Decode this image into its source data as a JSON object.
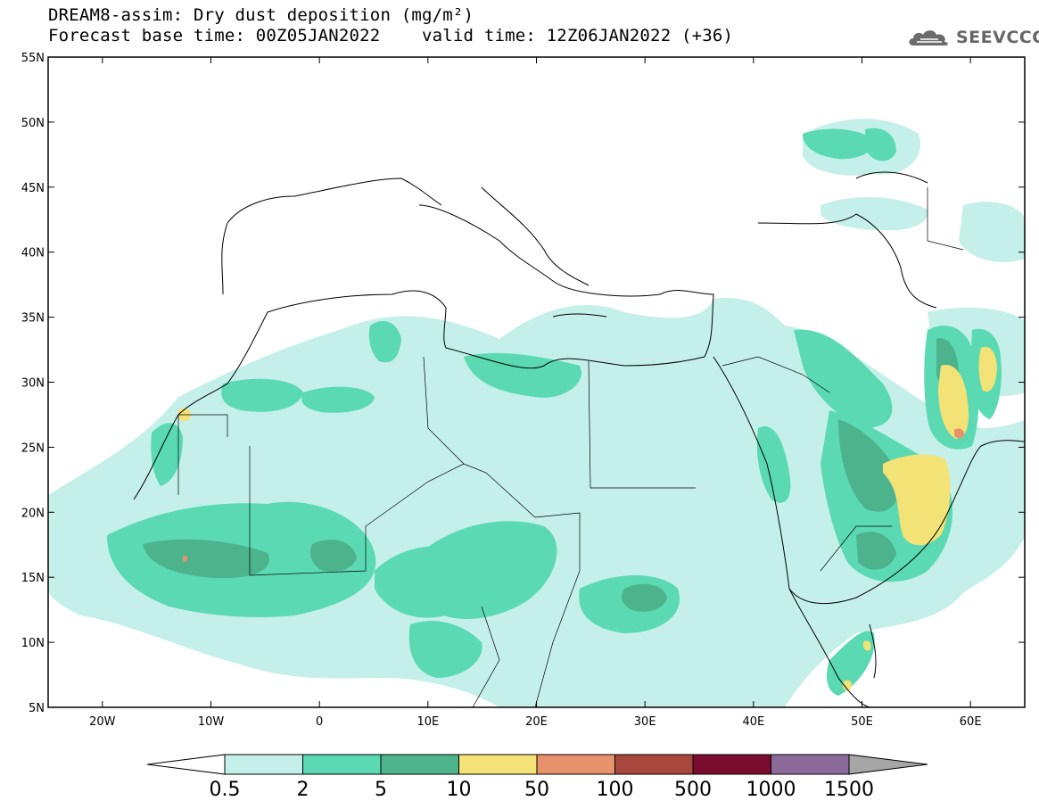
{
  "header": {
    "title_line1": "DREAM8-assim: Dry dust deposition (mg/m²)",
    "title_line2": "Forecast base time: 00Z05JAN2022    valid time: 12Z06JAN2022 (+36)",
    "logo_text": "SEEVCCC",
    "logo_icon": "cloud-logo-icon"
  },
  "map": {
    "type": "heatmap",
    "projection": "lat-lon",
    "lon_range": [
      -25,
      65
    ],
    "lat_range": [
      5,
      55
    ],
    "lon_ticks": [
      {
        "value": -20,
        "label": "20W"
      },
      {
        "value": -10,
        "label": "10W"
      },
      {
        "value": 0,
        "label": "0"
      },
      {
        "value": 10,
        "label": "10E"
      },
      {
        "value": 20,
        "label": "20E"
      },
      {
        "value": 30,
        "label": "30E"
      },
      {
        "value": 40,
        "label": "40E"
      },
      {
        "value": 50,
        "label": "50E"
      },
      {
        "value": 60,
        "label": "60E"
      }
    ],
    "lat_ticks": [
      {
        "value": 5,
        "label": "5N"
      },
      {
        "value": 10,
        "label": "10N"
      },
      {
        "value": 15,
        "label": "15N"
      },
      {
        "value": 20,
        "label": "20N"
      },
      {
        "value": 25,
        "label": "25N"
      },
      {
        "value": 30,
        "label": "30N"
      },
      {
        "value": 35,
        "label": "35N"
      },
      {
        "value": 40,
        "label": "40N"
      },
      {
        "value": 45,
        "label": "45N"
      },
      {
        "value": 50,
        "label": "50N"
      },
      {
        "value": 55,
        "label": "55N"
      }
    ]
  },
  "chart_data": {
    "type": "heatmap",
    "title": "DREAM8-assim: Dry dust deposition (mg/m²)",
    "units": "mg/m²",
    "colorbar": {
      "labels": [
        "0.5",
        "2",
        "5",
        "10",
        "50",
        "100",
        "500",
        "1000",
        "1500"
      ],
      "colors": [
        "#c4f0e9",
        "#5ad9b3",
        "#4db38d",
        "#f3e276",
        "#e8926c",
        "#a8473b",
        "#7a0d2f",
        "#8b6a9a"
      ],
      "under_color": "#ffffff",
      "over_color": "#a6a6a6"
    },
    "regions": [
      {
        "lon": [
          -20,
          50
        ],
        "lat": [
          8,
          35
        ],
        "level": "0.5"
      },
      {
        "lon": [
          -18,
          10
        ],
        "lat": [
          13,
          20
        ],
        "level": "2"
      },
      {
        "lon": [
          10,
          30
        ],
        "lat": [
          10,
          20
        ],
        "level": "2"
      },
      {
        "lon": [
          50,
          58
        ],
        "lat": [
          16,
          25
        ],
        "level": "10"
      },
      {
        "lon": [
          56,
          61
        ],
        "lat": [
          25,
          30
        ],
        "level": "10"
      },
      {
        "lon": [
          59.5,
          60.5
        ],
        "lat": [
          25.5,
          26.3
        ],
        "level": "100"
      }
    ]
  }
}
